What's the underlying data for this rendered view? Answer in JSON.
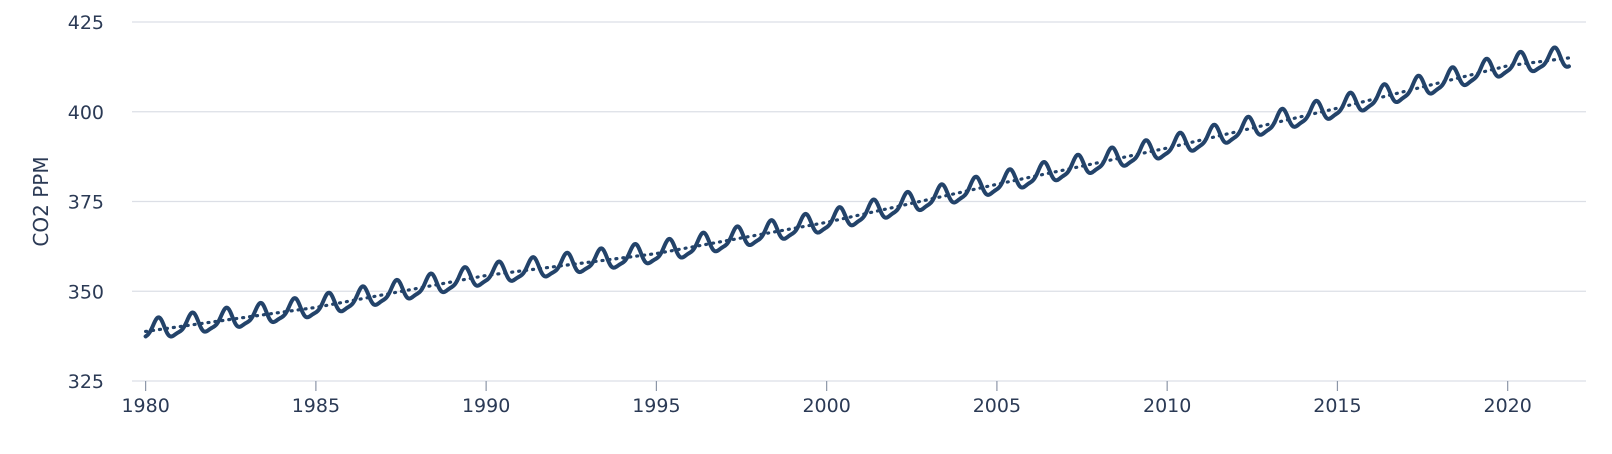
{
  "chart_data": {
    "type": "line",
    "title": "",
    "xlabel": "",
    "ylabel": "CO2 PPM",
    "xlim": [
      1979.6,
      2022.3
    ],
    "ylim": [
      325,
      425
    ],
    "x_ticks": [
      1980,
      1985,
      1990,
      1995,
      2000,
      2005,
      2010,
      2015,
      2020
    ],
    "y_ticks": [
      325,
      350,
      375,
      400,
      425
    ],
    "grid": "horizontal",
    "legend": "none",
    "colors": {
      "line": "#23436a",
      "grid": "#dcdfe6",
      "text": "#2b3a55"
    },
    "series": [
      {
        "style": "solid",
        "start_year": 1980,
        "end_year": 2021.8,
        "seasonal_amplitude_ppm": 3.0,
        "annual_mean": {
          "x": [
            1980,
            1982,
            1985,
            1990,
            1995,
            2000,
            2005,
            2010,
            2015,
            2020,
            2021.8
          ],
          "y": [
            338.8,
            341.5,
            345.5,
            354.4,
            360.5,
            369.2,
            379.8,
            389.9,
            401.0,
            412.8,
            415.0
          ]
        }
      },
      {
        "style": "dotted",
        "x": [
          1980,
          1982,
          1985,
          1990,
          1995,
          2000,
          2005,
          2010,
          2015,
          2020,
          2021.8
        ],
        "y": [
          338.8,
          341.5,
          345.5,
          354.4,
          360.5,
          369.2,
          379.8,
          389.9,
          401.0,
          412.8,
          415.0
        ]
      }
    ]
  }
}
